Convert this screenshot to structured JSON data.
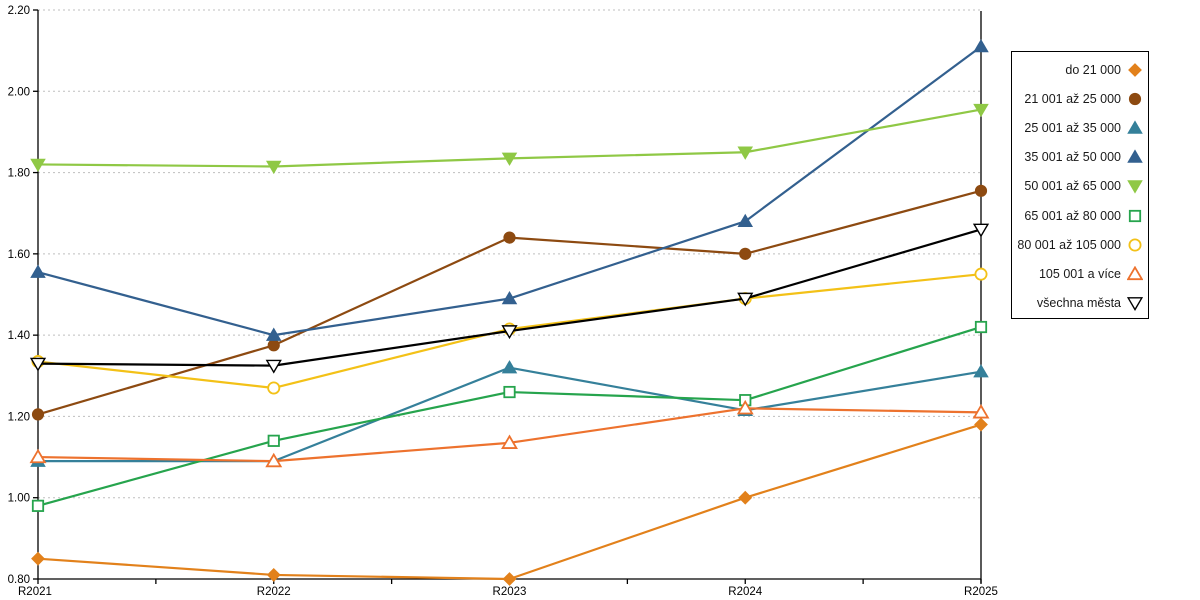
{
  "chart_data": {
    "type": "line",
    "title": "",
    "xlabel": "",
    "ylabel": "",
    "categories": [
      "R2021",
      "R2022",
      "R2023",
      "R2024",
      "R2025"
    ],
    "ylim": [
      0.8,
      2.2
    ],
    "ytick_step": 0.2,
    "ytick_labels": [
      "0.80",
      "1.00",
      "1.20",
      "1.40",
      "1.60",
      "1.80",
      "2.00",
      "2.20"
    ],
    "grid": "horizontal-dashed",
    "grid_color": "#BFBFBF",
    "axis_color": "#000000",
    "legend_position": "right",
    "series": [
      {
        "name": "do 21 000",
        "color": "#E2811B",
        "marker": "diamond",
        "style": "filled",
        "values": [
          0.85,
          0.81,
          0.8,
          1.0,
          1.18
        ]
      },
      {
        "name": "21 001 až 25 000",
        "color": "#8D4A11",
        "marker": "circle",
        "style": "filled",
        "values": [
          1.205,
          1.375,
          1.64,
          1.6,
          1.755
        ]
      },
      {
        "name": "25 001 až 35 000",
        "color": "#35809A",
        "marker": "tri-up",
        "style": "filled",
        "values": [
          1.09,
          1.09,
          1.32,
          1.215,
          1.31
        ]
      },
      {
        "name": "35 001 až 50 000",
        "color": "#33608F",
        "marker": "tri-up",
        "style": "filled",
        "values": [
          1.555,
          1.4,
          1.49,
          1.68,
          2.11
        ]
      },
      {
        "name": "50 001 až 65 000",
        "color": "#8FC845",
        "marker": "tri-down",
        "style": "filled",
        "values": [
          1.82,
          1.815,
          1.835,
          1.85,
          1.955
        ]
      },
      {
        "name": "65 001 až 80 000",
        "color": "#26A44D",
        "marker": "square",
        "style": "hollow",
        "values": [
          0.98,
          1.14,
          1.26,
          1.24,
          1.42
        ]
      },
      {
        "name": "80 001 až 105 000",
        "color": "#F3C117",
        "marker": "circle",
        "style": "hollow",
        "values": [
          1.335,
          1.27,
          1.415,
          1.49,
          1.55
        ]
      },
      {
        "name": "105 001 a více",
        "color": "#ED722E",
        "marker": "tri-up",
        "style": "hollow",
        "values": [
          1.1,
          1.09,
          1.135,
          1.22,
          1.21
        ]
      },
      {
        "name": "všechna města",
        "color": "#000000",
        "marker": "tri-down",
        "style": "hollow",
        "values": [
          1.33,
          1.325,
          1.41,
          1.49,
          1.66
        ]
      }
    ]
  }
}
